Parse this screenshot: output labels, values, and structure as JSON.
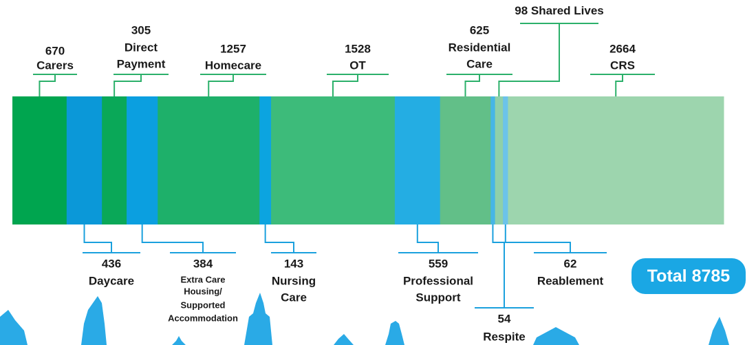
{
  "chart_data": {
    "type": "stacked-bar",
    "labels": [
      [
        "Carers"
      ],
      [
        "Daycare"
      ],
      [
        "Direct",
        "Payment"
      ],
      [
        "Extra Care",
        "Housing/",
        "Supported",
        "Accommodation"
      ],
      [
        "Homecare"
      ],
      [
        "Nursing",
        "Care"
      ],
      [
        "OT"
      ],
      [
        "Professional",
        "Support"
      ],
      [
        "Residential",
        "Care"
      ],
      [
        "Respite"
      ],
      [
        "Shared Lives"
      ],
      [
        "Reablement"
      ],
      [
        "CRS"
      ]
    ],
    "values": [
      670,
      436,
      305,
      384,
      1257,
      143,
      1528,
      559,
      625,
      54,
      98,
      62,
      2664
    ],
    "colors": [
      "#00a54f",
      "#0b98d8",
      "#0aa858",
      "#0b9fe0",
      "#1eb06a",
      "#0ca4e0",
      "#3dbb7a",
      "#24ade3",
      "#62bf88",
      "#46b6e6",
      "#8fd0a9",
      "#6cc3ea",
      "#9dd5ae"
    ],
    "total": {
      "label": "Total",
      "value": 8785
    }
  }
}
